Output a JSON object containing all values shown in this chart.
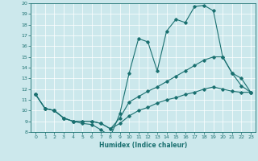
{
  "xlabel": "Humidex (Indice chaleur)",
  "bg_color": "#cce8ec",
  "line_color": "#1a7070",
  "grid_color": "#ffffff",
  "xlim": [
    -0.5,
    23.5
  ],
  "ylim": [
    8,
    20
  ],
  "xticks": [
    0,
    1,
    2,
    3,
    4,
    5,
    6,
    7,
    8,
    9,
    10,
    11,
    12,
    13,
    14,
    15,
    16,
    17,
    18,
    19,
    20,
    21,
    22,
    23
  ],
  "yticks": [
    8,
    9,
    10,
    11,
    12,
    13,
    14,
    15,
    16,
    17,
    18,
    19,
    20
  ],
  "line1_x": [
    0,
    1,
    2,
    3,
    4,
    5,
    6,
    7,
    8,
    9,
    10,
    11,
    12,
    13,
    14,
    15,
    16,
    17,
    18,
    19,
    20,
    21,
    22,
    23
  ],
  "line1_y": [
    11.5,
    10.2,
    10.0,
    9.3,
    9.0,
    8.8,
    8.7,
    8.2,
    7.6,
    9.7,
    13.5,
    16.7,
    16.4,
    13.7,
    17.4,
    18.5,
    18.2,
    19.7,
    19.8,
    19.3,
    15.0,
    13.5,
    13.0,
    11.7
  ],
  "line2_x": [
    0,
    1,
    2,
    3,
    4,
    5,
    6,
    7,
    8,
    9,
    10,
    11,
    12,
    13,
    14,
    15,
    16,
    17,
    18,
    19,
    20,
    21,
    22,
    23
  ],
  "line2_y": [
    11.5,
    10.2,
    10.0,
    9.3,
    9.0,
    9.0,
    9.0,
    8.8,
    8.3,
    9.3,
    10.8,
    11.3,
    11.8,
    12.2,
    12.7,
    13.2,
    13.7,
    14.2,
    14.7,
    15.0,
    15.0,
    13.5,
    12.3,
    11.7
  ],
  "line3_x": [
    0,
    1,
    2,
    3,
    4,
    5,
    6,
    7,
    8,
    9,
    10,
    11,
    12,
    13,
    14,
    15,
    16,
    17,
    18,
    19,
    20,
    21,
    22,
    23
  ],
  "line3_y": [
    11.5,
    10.2,
    10.0,
    9.3,
    9.0,
    9.0,
    9.0,
    8.8,
    8.3,
    8.8,
    9.5,
    10.0,
    10.3,
    10.7,
    11.0,
    11.2,
    11.5,
    11.7,
    12.0,
    12.2,
    12.0,
    11.8,
    11.7,
    11.7
  ]
}
